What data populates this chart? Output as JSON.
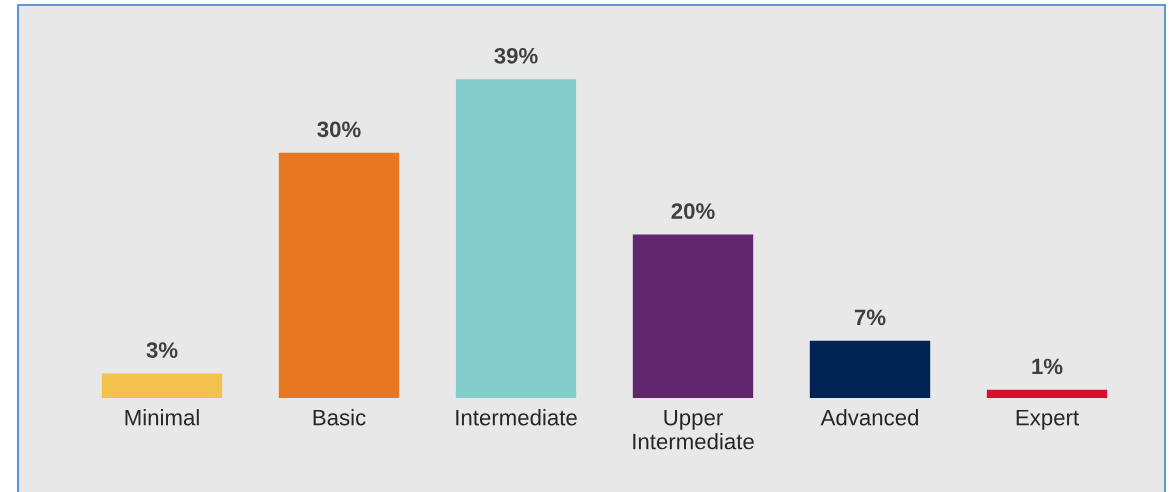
{
  "chart_data": {
    "type": "bar",
    "categories": [
      "Minimal",
      "Basic",
      "Intermediate",
      "Upper\nIntermediate",
      "Advanced",
      "Expert"
    ],
    "values": [
      3,
      30,
      39,
      20,
      7,
      1
    ],
    "colors": [
      "#f2c14e",
      "#e87722",
      "#84cdcc",
      "#62266f",
      "#002554",
      "#d50f2d"
    ],
    "value_labels": [
      "3%",
      "30%",
      "39%",
      "20%",
      "7%",
      "1%"
    ]
  }
}
